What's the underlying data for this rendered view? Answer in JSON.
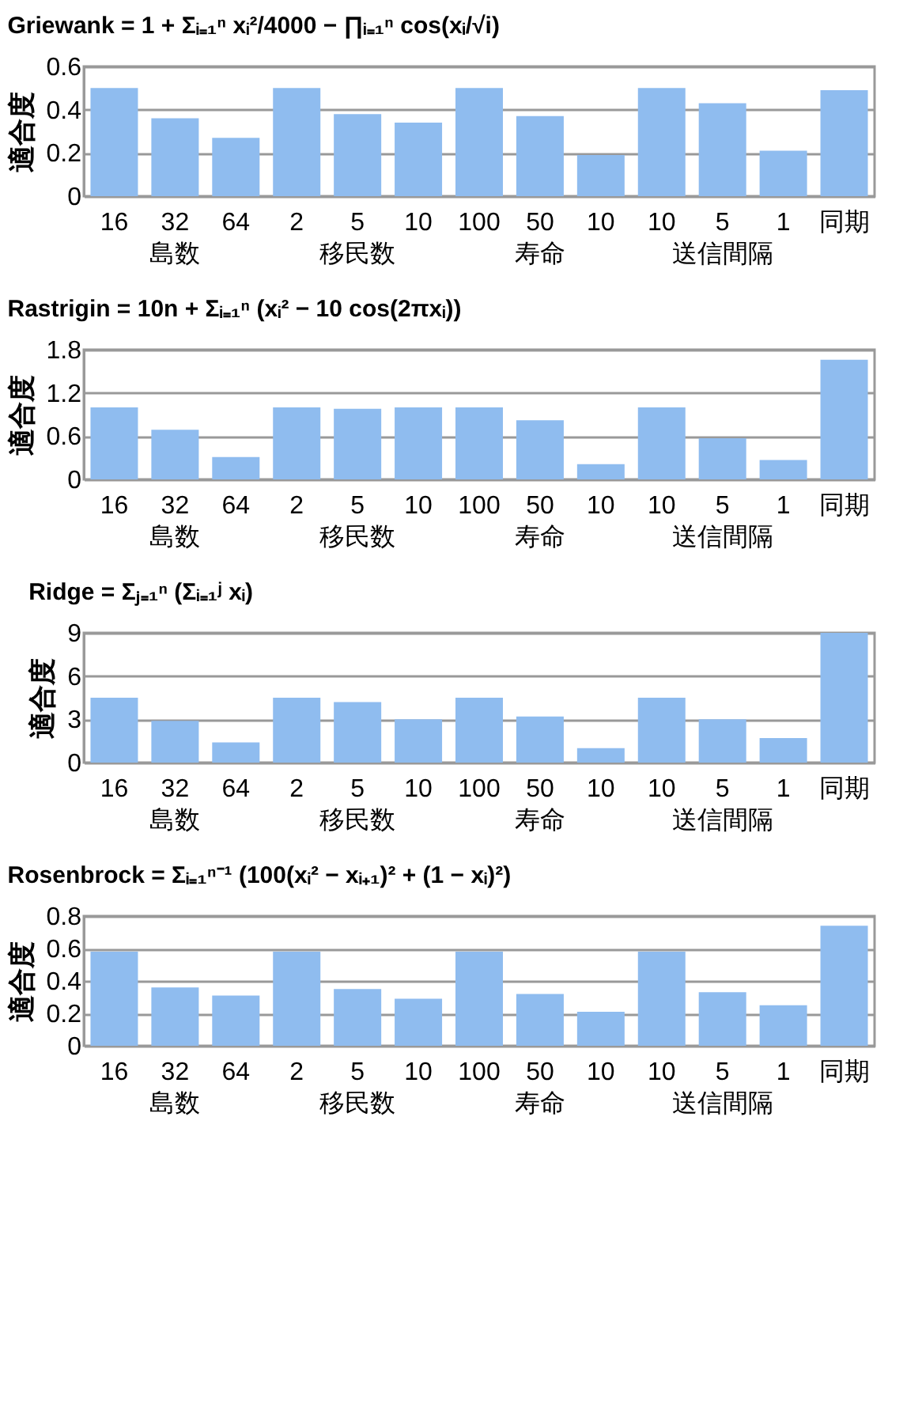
{
  "chart_data": [
    {
      "type": "bar",
      "title": "Griewank = 1 + Σᵢ₌₁ⁿ xᵢ²/4000 − ∏ᵢ₌₁ⁿ cos(xᵢ/√i)",
      "ylabel": "適合度",
      "categories": [
        "16",
        "32",
        "64",
        "2",
        "5",
        "10",
        "100",
        "50",
        "10",
        "10",
        "5",
        "1",
        "同期"
      ],
      "annotations": [
        "島数",
        "移民数",
        "寿命",
        "送信間隔"
      ],
      "values": [
        0.5,
        0.36,
        0.27,
        0.5,
        0.38,
        0.34,
        0.5,
        0.37,
        0.19,
        0.5,
        0.43,
        0.21,
        0.49
      ],
      "color": "#8fbcef",
      "ylim": [
        0,
        0.6
      ],
      "yticks": [
        0,
        0.2,
        0.4,
        0.6
      ],
      "grid": "y"
    },
    {
      "type": "bar",
      "title": "Rastrigin = 10n + Σᵢ₌₁ⁿ (xᵢ² − 10 cos(2πxᵢ))",
      "ylabel": "適合度",
      "categories": [
        "16",
        "32",
        "64",
        "2",
        "5",
        "10",
        "100",
        "50",
        "10",
        "10",
        "5",
        "1",
        "同期"
      ],
      "annotations": [
        "島数",
        "移民数",
        "寿命",
        "送信間隔"
      ],
      "values": [
        1.0,
        0.69,
        0.31,
        1.0,
        0.98,
        1.0,
        1.0,
        0.82,
        0.21,
        1.0,
        0.57,
        0.27,
        1.66
      ],
      "color": "#8fbcef",
      "ylim": [
        0,
        1.8
      ],
      "yticks": [
        0,
        0.6,
        1.2,
        1.8
      ],
      "grid": "y"
    },
    {
      "type": "bar",
      "title": "Ridge = Σⱼ₌₁ⁿ (Σᵢ₌₁ʲ xᵢ)",
      "ylabel": "適合度",
      "categories": [
        "16",
        "32",
        "64",
        "2",
        "5",
        "10",
        "100",
        "50",
        "10",
        "10",
        "5",
        "1",
        "同期"
      ],
      "annotations": [
        "島数",
        "移民数",
        "寿命",
        "送信間隔"
      ],
      "values": [
        4.5,
        2.9,
        1.4,
        4.5,
        4.2,
        3.0,
        4.5,
        3.2,
        1.0,
        4.5,
        3.0,
        1.7,
        9.0
      ],
      "color": "#8fbcef",
      "ylim": [
        0,
        9
      ],
      "yticks": [
        0,
        3,
        6,
        9
      ],
      "grid": "y"
    },
    {
      "type": "bar",
      "title": "Rosenbrock = Σᵢ₌₁ⁿ⁻¹ (100(xᵢ² − xᵢ₊₁)² + (1 − xᵢ)²)",
      "ylabel": "適合度",
      "categories": [
        "16",
        "32",
        "64",
        "2",
        "5",
        "10",
        "100",
        "50",
        "10",
        "10",
        "5",
        "1",
        "同期"
      ],
      "annotations": [
        "島数",
        "移民数",
        "寿命",
        "送信間隔"
      ],
      "values": [
        0.58,
        0.36,
        0.31,
        0.58,
        0.35,
        0.29,
        0.58,
        0.32,
        0.21,
        0.58,
        0.33,
        0.25,
        0.74
      ],
      "color": "#8fbcef",
      "ylim": [
        0,
        0.8
      ],
      "yticks": [
        0,
        0.2,
        0.4,
        0.6,
        0.8
      ],
      "grid": "y"
    }
  ]
}
